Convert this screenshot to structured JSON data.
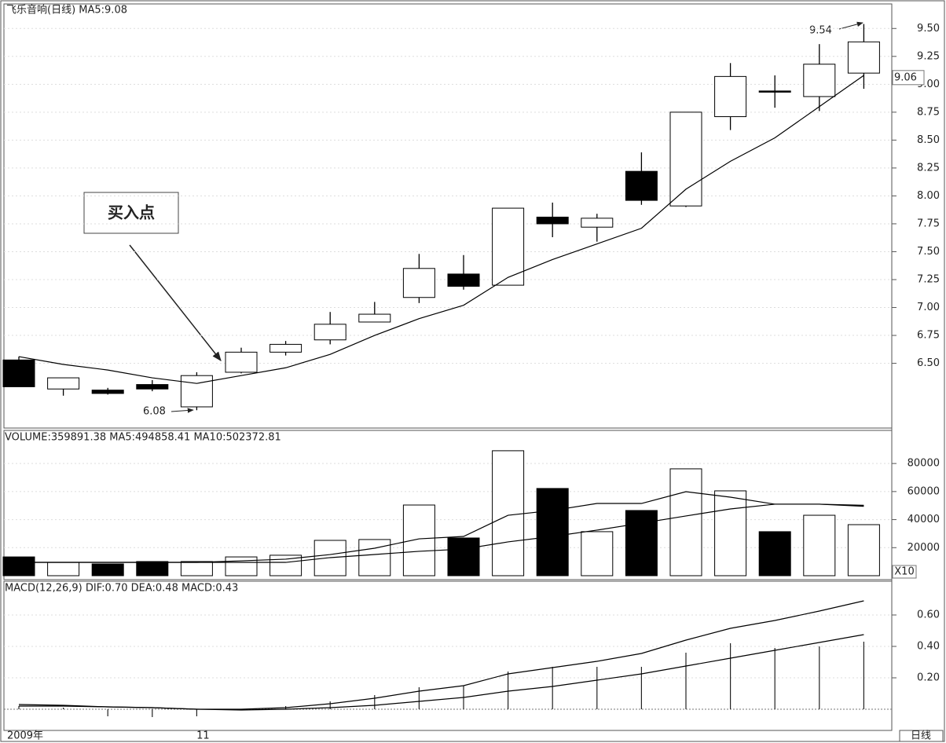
{
  "chart_data": [
    {
      "type": "candlestick",
      "title": "飞乐音响(日线) MA5:9.08",
      "categories": [
        "2009年",
        null,
        null,
        null,
        "11",
        null,
        null,
        null,
        null,
        null,
        null,
        null,
        null,
        null,
        null,
        null,
        null,
        null,
        null,
        null
      ],
      "open": [
        6.53,
        6.27,
        6.26,
        6.31,
        6.11,
        6.42,
        6.6,
        6.71,
        6.87,
        7.09,
        7.3,
        7.2,
        7.81,
        7.72,
        8.22,
        7.91,
        8.71,
        8.94,
        8.89,
        9.1
      ],
      "high": [
        6.56,
        6.37,
        6.28,
        6.35,
        6.42,
        6.64,
        6.7,
        6.96,
        7.05,
        7.48,
        7.47,
        7.89,
        7.94,
        7.84,
        8.39,
        8.75,
        9.19,
        9.08,
        9.36,
        9.54
      ],
      "low": [
        6.29,
        6.21,
        6.22,
        6.25,
        6.08,
        6.41,
        6.57,
        6.67,
        6.87,
        7.04,
        7.16,
        7.2,
        7.63,
        7.59,
        7.92,
        7.9,
        8.59,
        8.79,
        8.76,
        8.96
      ],
      "close": [
        6.29,
        6.37,
        6.23,
        6.27,
        6.39,
        6.6,
        6.67,
        6.85,
        6.94,
        7.35,
        7.19,
        7.89,
        7.75,
        7.8,
        7.96,
        8.75,
        9.07,
        8.93,
        9.18,
        9.38
      ],
      "up_color": "#ffffff",
      "down_color": "#000000",
      "color": "#000000",
      "series": [
        {
          "color": "#000000",
          "values": [
            6.56,
            6.49,
            6.44,
            6.37,
            6.32,
            6.39,
            6.46,
            6.58,
            6.75,
            6.9,
            7.02,
            7.27,
            7.43,
            7.57,
            7.71,
            8.06,
            8.31,
            8.52,
            8.8,
            9.08
          ]
        }
      ],
      "ylim": [
        5.92,
        9.72
      ],
      "yticks": [
        {
          "value": 6.5,
          "label": "6.50"
        },
        6.75,
        {
          "value": 7,
          "label": "7.00"
        },
        7.25,
        {
          "value": 7.5,
          "label": "7.50"
        },
        7.75,
        {
          "value": 8,
          "label": "8.00"
        },
        8.25,
        {
          "value": 8.5,
          "label": "8.50"
        },
        8.75,
        {
          "value": 9,
          "label": "9.00"
        },
        9.25,
        {
          "value": 9.5,
          "label": "9.50"
        }
      ],
      "grid": true,
      "last_price": 9.06,
      "annotation": "买入点"
    },
    {
      "type": "bar",
      "title": "VOLUME:359891.38 MA5:494858.41 MA10:502372.81",
      "values": [
        13400,
        9500,
        8400,
        10100,
        10100,
        13400,
        14600,
        25200,
        25800,
        50400,
        26900,
        89100,
        62200,
        31400,
        46500,
        76200,
        60500,
        31400,
        43100,
        36400
      ],
      "series": [
        {
          "color": "#000000",
          "values": [
            9500,
            9500,
            9500,
            9500,
            9500,
            10600,
            11800,
            15100,
            19600,
            26300,
            28000,
            43100,
            46500,
            51500,
            51500,
            59900,
            56000,
            51000,
            51000,
            49500
          ]
        },
        {
          "color": "#000000",
          "values": [
            9500,
            9500,
            9500,
            9500,
            9500,
            9500,
            9500,
            12900,
            15100,
            17400,
            19000,
            24100,
            28000,
            32500,
            37500,
            42600,
            47600,
            51000,
            51000,
            50200
          ]
        }
      ],
      "ylim": [
        -2800,
        103600
      ],
      "yticks": [
        20000,
        40000,
        60000,
        80000
      ],
      "grid": true,
      "unit": "X10"
    },
    {
      "type": "macd",
      "title": "MACD(12,26,9) DIF:0.70 DEA:0.48 MACD:0.43",
      "values": [
        0.02,
        0.01,
        -0.045,
        -0.05,
        -0.045,
        0.0,
        0.02,
        0.05,
        0.09,
        0.14,
        0.15,
        0.24,
        0.27,
        0.27,
        0.27,
        0.36,
        0.42,
        0.39,
        0.4,
        0.43
      ],
      "series": [
        {
          "color": "#000000",
          "values": [
            0.03,
            0.025,
            0.015,
            0.01,
            0.0,
            0.0,
            0.01,
            0.035,
            0.07,
            0.115,
            0.15,
            0.225,
            0.265,
            0.305,
            0.355,
            0.44,
            0.515,
            0.565,
            0.625,
            0.69
          ]
        },
        {
          "color": "#000000",
          "values": [
            0.02,
            0.02,
            0.015,
            0.01,
            0.0,
            -0.005,
            0.0,
            0.01,
            0.025,
            0.05,
            0.075,
            0.115,
            0.145,
            0.185,
            0.225,
            0.275,
            0.325,
            0.375,
            0.425,
            0.475
          ]
        }
      ],
      "ylim": [
        -0.135,
        0.815
      ],
      "yticks": [
        {
          "value": 0.2,
          "label": "0.20"
        },
        {
          "value": 0.4,
          "label": "0.40"
        },
        {
          "value": 0.6,
          "label": "0.60"
        }
      ],
      "grid": true
    }
  ],
  "footer": {
    "period": "日线"
  }
}
